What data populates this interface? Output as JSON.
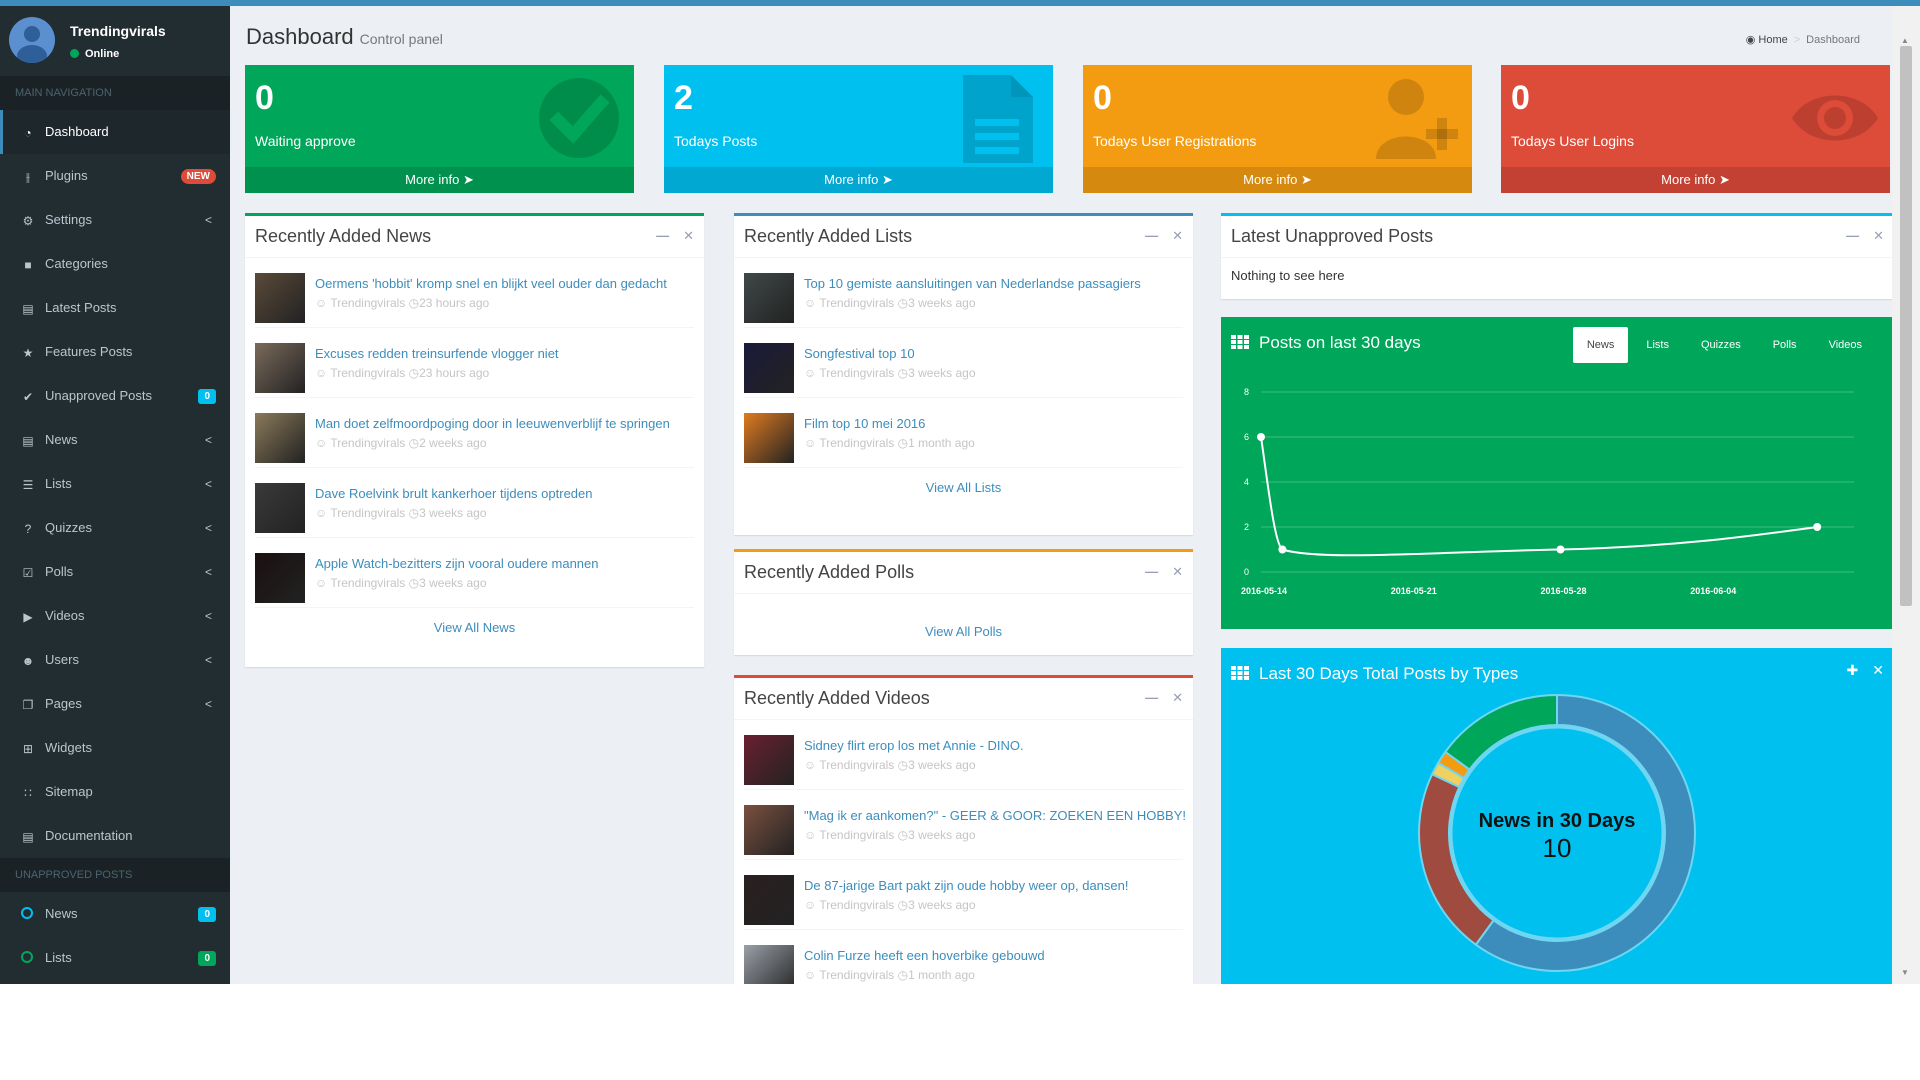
{
  "sidebar": {
    "user": {
      "name": "Trendingvirals",
      "status": "Online"
    },
    "main_nav_header": "MAIN NAVIGATION",
    "items": [
      {
        "label": "Dashboard",
        "icon": "dashboard-icon"
      },
      {
        "label": "Plugins",
        "icon": "plug-icon",
        "badge": "NEW"
      },
      {
        "label": "Settings",
        "icon": "gear-icon",
        "chevron": "<"
      },
      {
        "label": "Categories",
        "icon": "folder-icon"
      },
      {
        "label": "Latest Posts",
        "icon": "book-icon"
      },
      {
        "label": "Features Posts",
        "icon": "star-icon"
      },
      {
        "label": "Unapproved Posts",
        "icon": "check-circle-icon",
        "badge": "0"
      },
      {
        "label": "News",
        "icon": "file-icon",
        "chevron": "<"
      },
      {
        "label": "Lists",
        "icon": "list-icon",
        "chevron": "<"
      },
      {
        "label": "Quizzes",
        "icon": "question-icon",
        "chevron": "<"
      },
      {
        "label": "Polls",
        "icon": "check-square-icon",
        "chevron": "<"
      },
      {
        "label": "Videos",
        "icon": "video-icon",
        "chevron": "<"
      },
      {
        "label": "Users",
        "icon": "users-icon",
        "chevron": "<"
      },
      {
        "label": "Pages",
        "icon": "pages-icon",
        "chevron": "<"
      },
      {
        "label": "Widgets",
        "icon": "plus-square-icon"
      },
      {
        "label": "Sitemap",
        "icon": "rss-icon"
      },
      {
        "label": "Documentation",
        "icon": "book-icon"
      }
    ],
    "unapproved_header": "UNAPPROVED POSTS",
    "unapproved": [
      {
        "label": "News",
        "badge": "0",
        "color": "#00c0ef"
      },
      {
        "label": "Lists",
        "badge": "0",
        "color": "#00a65a"
      }
    ]
  },
  "header": {
    "title": "Dashboard",
    "subtitle": "Control panel",
    "breadcrumb": [
      "Home",
      "Dashboard"
    ]
  },
  "infoboxes": [
    {
      "number": "0",
      "label": "Waiting approve",
      "more": "More info",
      "color": "#00a65a",
      "icon": "check-icon"
    },
    {
      "number": "2",
      "label": "Todays Posts",
      "more": "More info",
      "color": "#00c0ef",
      "icon": "document-icon"
    },
    {
      "number": "0",
      "label": "Todays User Registrations",
      "more": "More info",
      "color": "#f39c12",
      "icon": "user-plus-icon"
    },
    {
      "number": "0",
      "label": "Todays User Logins",
      "more": "More info",
      "color": "#dd4b39",
      "icon": "eye-icon"
    }
  ],
  "news_box": {
    "title": "Recently Added News",
    "view_all": "View All News",
    "items": [
      {
        "title": "Oermens 'hobbit' kromp snel en blijkt veel ouder dan gedacht",
        "author": "Trendingvirals",
        "time": "23 hours ago"
      },
      {
        "title": "Excuses redden treinsurfende vlogger niet",
        "author": "Trendingvirals",
        "time": "23 hours ago"
      },
      {
        "title": "Man doet zelfmoordpoging door in leeuwenverblijf te springen",
        "author": "Trendingvirals",
        "time": "2 weeks ago"
      },
      {
        "title": "Dave Roelvink brult kankerhoer tijdens optreden",
        "author": "Trendingvirals",
        "time": "3 weeks ago"
      },
      {
        "title": "Apple Watch-bezitters zijn vooral oudere mannen",
        "author": "Trendingvirals",
        "time": "3 weeks ago"
      }
    ]
  },
  "lists_box": {
    "title": "Recently Added Lists",
    "view_all": "View All Lists",
    "items": [
      {
        "title": "Top 10 gemiste aansluitingen van Nederlandse passagiers",
        "author": "Trendingvirals",
        "time": "3 weeks ago"
      },
      {
        "title": "Songfestival top 10",
        "author": "Trendingvirals",
        "time": "3 weeks ago"
      },
      {
        "title": "Film top 10 mei 2016",
        "author": "Trendingvirals",
        "time": "1 month ago"
      }
    ]
  },
  "polls_box": {
    "title": "Recently Added Polls",
    "view_all": "View All Polls"
  },
  "videos_box": {
    "title": "Recently Added Videos",
    "items": [
      {
        "title": "Sidney flirt erop los met Annie - DINO.",
        "author": "Trendingvirals",
        "time": "3 weeks ago"
      },
      {
        "title": "\"Mag ik er aankomen?\" - GEER & GOOR: ZOEKEN EEN HOBBY!",
        "author": "Trendingvirals",
        "time": "3 weeks ago"
      },
      {
        "title": "De 87-jarige Bart pakt zijn oude hobby weer op, dansen!",
        "author": "Trendingvirals",
        "time": "3 weeks ago"
      },
      {
        "title": "Colin Furze heeft een hoverbike gebouwd",
        "author": "Trendingvirals",
        "time": "1 month ago"
      }
    ]
  },
  "unapproved_box": {
    "title": "Latest Unapproved Posts",
    "empty": "Nothing to see here"
  },
  "posts_chart_box": {
    "title": "Posts on last 30 days",
    "tabs": [
      "News",
      "Lists",
      "Quizzes",
      "Polls",
      "Videos"
    ],
    "active_tab": "News"
  },
  "types_box": {
    "title": "Last 30 Days Total Posts by Types",
    "center_title": "News in 30 Days",
    "center_value": "10"
  },
  "chart_data": [
    {
      "type": "line",
      "x": [
        "2016-05-14",
        "2016-05-15",
        "2016-05-28",
        "2016-06-09"
      ],
      "values": [
        6,
        1,
        1,
        2
      ],
      "x_ticks": [
        "2016-05-14",
        "2016-05-21",
        "2016-05-28",
        "2016-06-04"
      ],
      "y_ticks": [
        0,
        2,
        4,
        6,
        8
      ],
      "ylim": [
        0,
        8
      ],
      "grid": true,
      "color": "#ffffff"
    },
    {
      "type": "pie",
      "donut": true,
      "slices": [
        {
          "value": 60,
          "color": "#3c8dbc"
        },
        {
          "value": 22,
          "color": "#a04b3f"
        },
        {
          "value": 1.5,
          "color": "#f0d060"
        },
        {
          "value": 1.5,
          "color": "#f39c12"
        },
        {
          "value": 15,
          "color": "#00a65a"
        }
      ]
    }
  ]
}
